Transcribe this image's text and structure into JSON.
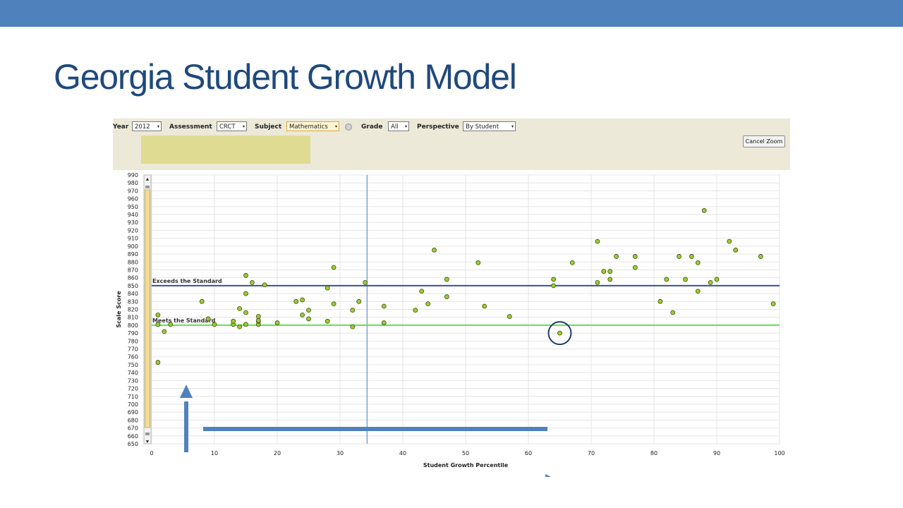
{
  "slide": {
    "title": "Georgia Student Growth Model"
  },
  "colors": {
    "top_bar": "#4f81bd",
    "title": "#1f497d",
    "exceeds_line": "#3b4fa0",
    "meets_line": "#66dd55",
    "point_fill": "#9acd32",
    "annotation": "#4f81bd"
  },
  "toolbar": {
    "year_label": "Year",
    "year_value": "2012",
    "assessment_label": "Assessment",
    "assessment_value": "CRCT",
    "subject_label": "Subject",
    "subject_value": "Mathematics",
    "grade_label": "Grade",
    "grade_value": "All",
    "perspective_label": "Perspective",
    "perspective_value": "By Student",
    "cancel_zoom_label": "Cancel Zoom"
  },
  "chart_data": {
    "type": "scatter",
    "xlabel": "Student Growth Percentile",
    "ylabel": "Scale Score",
    "xlim": [
      0,
      100
    ],
    "ylim": [
      650,
      990
    ],
    "x_ticks": [
      0,
      10,
      20,
      30,
      40,
      50,
      60,
      70,
      80,
      90,
      100
    ],
    "y_ticks": [
      650,
      660,
      670,
      680,
      690,
      700,
      710,
      720,
      730,
      740,
      750,
      760,
      770,
      780,
      790,
      800,
      810,
      820,
      830,
      840,
      850,
      860,
      870,
      880,
      890,
      900,
      910,
      920,
      930,
      940,
      950,
      960,
      970,
      980,
      990
    ],
    "grid": true,
    "reference_lines": [
      {
        "label": "Exceeds the Standard",
        "y": 850
      },
      {
        "label": "Meets the Standard",
        "y": 800
      }
    ],
    "vertical_marker_x": 34.3,
    "highlighted_point": {
      "x": 65,
      "y": 790
    },
    "points": [
      [
        1,
        753
      ],
      [
        1,
        801
      ],
      [
        1,
        813
      ],
      [
        2,
        792
      ],
      [
        3,
        801
      ],
      [
        8,
        830
      ],
      [
        9,
        808
      ],
      [
        10,
        801
      ],
      [
        13,
        801
      ],
      [
        13,
        805
      ],
      [
        14,
        798
      ],
      [
        14,
        821
      ],
      [
        15,
        801
      ],
      [
        15,
        816
      ],
      [
        15,
        840
      ],
      [
        15,
        863
      ],
      [
        16,
        854
      ],
      [
        17,
        801
      ],
      [
        17,
        805
      ],
      [
        17,
        806
      ],
      [
        17,
        811
      ],
      [
        18,
        851
      ],
      [
        20,
        803
      ],
      [
        23,
        830
      ],
      [
        24,
        813
      ],
      [
        24,
        832
      ],
      [
        25,
        808
      ],
      [
        25,
        819
      ],
      [
        28,
        805
      ],
      [
        28,
        847
      ],
      [
        29,
        827
      ],
      [
        29,
        873
      ],
      [
        32,
        798
      ],
      [
        32,
        819
      ],
      [
        33,
        830
      ],
      [
        34,
        854
      ],
      [
        37,
        803
      ],
      [
        37,
        824
      ],
      [
        42,
        819
      ],
      [
        43,
        843
      ],
      [
        44,
        827
      ],
      [
        45,
        895
      ],
      [
        47,
        836
      ],
      [
        47,
        858
      ],
      [
        52,
        879
      ],
      [
        53,
        824
      ],
      [
        57,
        811
      ],
      [
        64,
        850
      ],
      [
        64,
        858
      ],
      [
        65,
        790
      ],
      [
        67,
        879
      ],
      [
        71,
        854
      ],
      [
        71,
        906
      ],
      [
        72,
        868
      ],
      [
        73,
        858
      ],
      [
        73,
        868
      ],
      [
        74,
        887
      ],
      [
        77,
        873
      ],
      [
        77,
        887
      ],
      [
        81,
        830
      ],
      [
        82,
        858
      ],
      [
        83,
        816
      ],
      [
        84,
        887
      ],
      [
        85,
        858
      ],
      [
        86,
        887
      ],
      [
        87,
        843
      ],
      [
        87,
        879
      ],
      [
        88,
        945
      ],
      [
        89,
        854
      ],
      [
        90,
        858
      ],
      [
        92,
        906
      ],
      [
        93,
        895
      ],
      [
        97,
        887
      ],
      [
        99,
        827
      ]
    ]
  }
}
